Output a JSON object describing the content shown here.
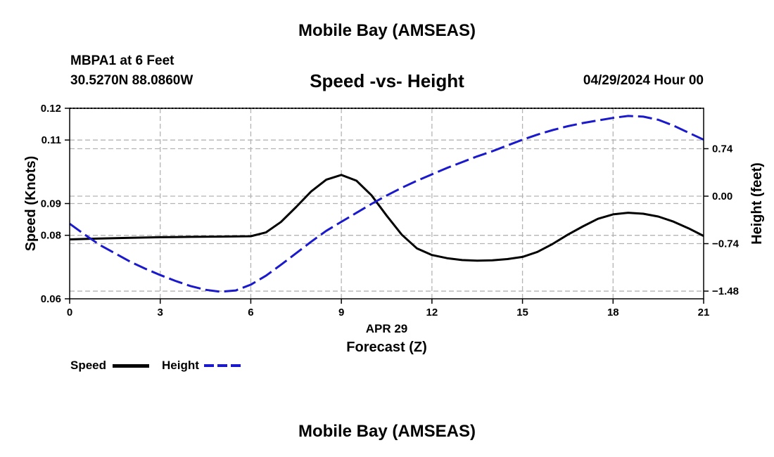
{
  "page": {
    "header_title": "Mobile Bay (AMSEAS)",
    "footer_title": "Mobile Bay (AMSEAS)",
    "station_line": "MBPA1 at 6 Feet",
    "coords_line": "30.5270N  88.0860W",
    "plot_title": "Speed -vs- Height",
    "date_line": "04/29/2024 Hour 00"
  },
  "chart_data": {
    "type": "line",
    "title": "Speed -vs- Height",
    "xlabel": "Forecast (Z)",
    "xlabel_date": "APR 29",
    "ylabel": "Speed (Knots)",
    "y2label": "Height (feet)",
    "xlim": [
      0,
      21
    ],
    "ylim": [
      0.06,
      0.12
    ],
    "y2lim": [
      -1.6,
      1.37
    ],
    "x_ticks": [
      0,
      3,
      6,
      9,
      12,
      15,
      18,
      21
    ],
    "x_tick_labels": [
      "0",
      "3",
      "6",
      "9",
      "12",
      "15",
      "18",
      "21"
    ],
    "y_ticks": [
      0.06,
      0.08,
      0.09,
      0.11,
      0.12
    ],
    "y_tick_labels": [
      "0.06",
      "0.08",
      "0.09",
      "0.11",
      "0.12"
    ],
    "y2_ticks": [
      -1.48,
      -0.74,
      0.0,
      0.74
    ],
    "y2_tick_labels": [
      "−1.48",
      "−0.74",
      "0.00",
      "0.74"
    ],
    "grid": true,
    "legend": [
      "Speed",
      "Height"
    ],
    "colors": {
      "speed": "#000000",
      "height": "#1a1acc",
      "grid": "#b4b4b4"
    },
    "series": [
      {
        "name": "Speed",
        "axis": "left",
        "style": "solid",
        "x": [
          0,
          1,
          2,
          3,
          4,
          5,
          6,
          6.5,
          7,
          7.5,
          8,
          8.5,
          9,
          9.5,
          10,
          10.5,
          11,
          11.5,
          12,
          12.5,
          13,
          13.5,
          14,
          14.5,
          15,
          15.5,
          16,
          16.5,
          17,
          17.5,
          18,
          18.5,
          19,
          19.5,
          20,
          20.5,
          21
        ],
        "values": [
          0.0787,
          0.079,
          0.0792,
          0.0794,
          0.0795,
          0.0796,
          0.0797,
          0.0809,
          0.0842,
          0.0889,
          0.0938,
          0.0975,
          0.099,
          0.0972,
          0.0926,
          0.0862,
          0.0802,
          0.0759,
          0.0738,
          0.0728,
          0.0722,
          0.072,
          0.0721,
          0.0725,
          0.0732,
          0.0748,
          0.0773,
          0.0802,
          0.0828,
          0.0852,
          0.0866,
          0.0871,
          0.0868,
          0.0859,
          0.0843,
          0.0822,
          0.0798
        ]
      },
      {
        "name": "Height",
        "axis": "right",
        "style": "dashed",
        "x": [
          0,
          0.5,
          1,
          1.5,
          2,
          2.5,
          3,
          3.5,
          4,
          4.5,
          5,
          5.5,
          6,
          6.5,
          7,
          7.5,
          8,
          8.5,
          9,
          9.5,
          10,
          10.5,
          11,
          11.5,
          12,
          12.5,
          13,
          13.5,
          14,
          14.5,
          15,
          15.5,
          16,
          16.5,
          17,
          17.5,
          18,
          18.5,
          19,
          19.5,
          20,
          20.5,
          21
        ],
        "values": [
          -0.43,
          -0.6,
          -0.76,
          -0.89,
          -1.02,
          -1.13,
          -1.23,
          -1.32,
          -1.4,
          -1.46,
          -1.49,
          -1.47,
          -1.38,
          -1.24,
          -1.07,
          -0.89,
          -0.71,
          -0.54,
          -0.4,
          -0.26,
          -0.12,
          0.01,
          0.13,
          0.24,
          0.34,
          0.44,
          0.53,
          0.62,
          0.7,
          0.79,
          0.88,
          0.96,
          1.03,
          1.09,
          1.14,
          1.18,
          1.22,
          1.25,
          1.24,
          1.19,
          1.1,
          0.99,
          0.88
        ]
      }
    ]
  }
}
